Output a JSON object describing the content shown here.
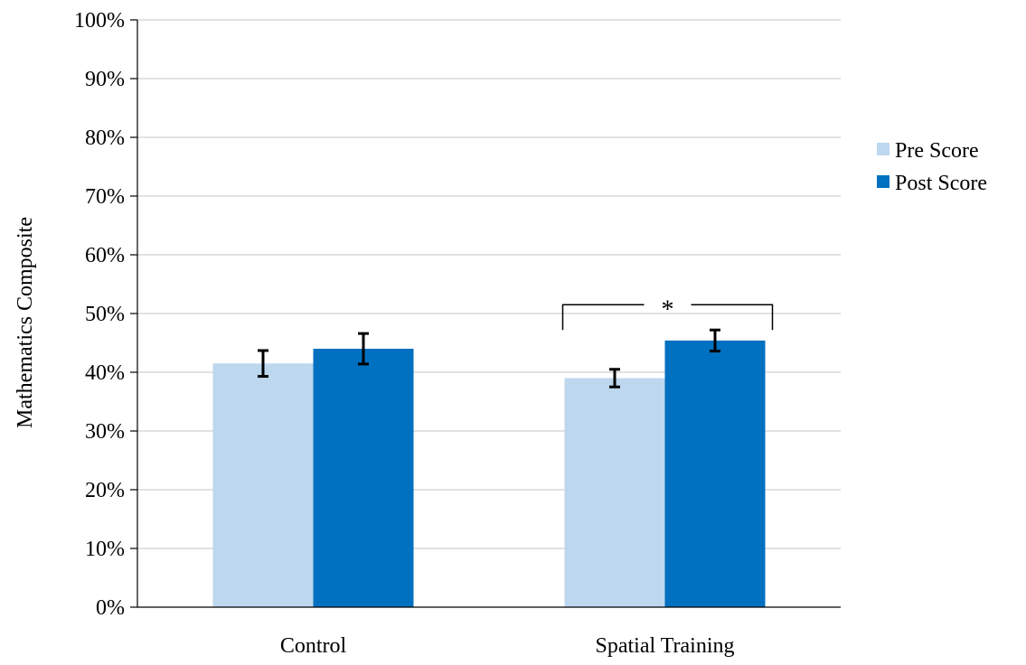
{
  "chart_data": {
    "type": "bar",
    "title": "",
    "xlabel": "",
    "ylabel": "Mathematics Composite",
    "categories": [
      "Control",
      "Spatial Training"
    ],
    "series": [
      {
        "name": "Pre Score",
        "color": "#bdd7ee",
        "values": [
          41.5,
          39.0
        ],
        "error": [
          2.2,
          1.5
        ]
      },
      {
        "name": "Post Score",
        "color": "#0070c0",
        "values": [
          44.0,
          45.4
        ],
        "error": [
          2.6,
          1.8
        ]
      }
    ],
    "ylim": [
      0,
      100
    ],
    "yticks": [
      0,
      10,
      20,
      30,
      40,
      50,
      60,
      70,
      80,
      90,
      100
    ],
    "ytick_labels": [
      "0%",
      "10%",
      "20%",
      "30%",
      "40%",
      "50%",
      "60%",
      "70%",
      "80%",
      "90%",
      "100%"
    ],
    "grid": true,
    "gridline_color": "#d9d9d9",
    "legend_position": "right",
    "annotations": [
      {
        "text": "*",
        "type": "significance-bracket",
        "category": "Spatial Training",
        "value": 51.5
      }
    ]
  }
}
